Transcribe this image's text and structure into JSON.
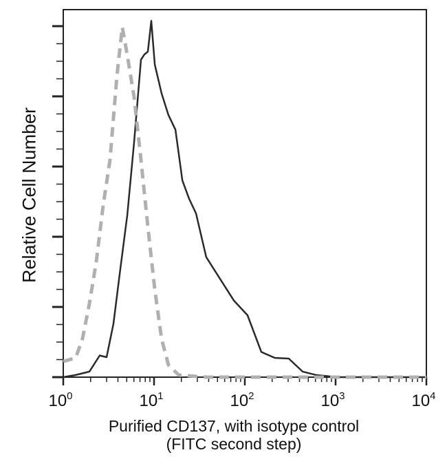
{
  "chart_data": {
    "type": "line",
    "title": "",
    "xlabel": [
      "Purified CD137, with isotype control",
      "(FITC second step)"
    ],
    "ylabel": "Relative Cell Number",
    "x_scale": "log",
    "xlim": [
      1,
      10000
    ],
    "ylim": [
      0,
      105
    ],
    "x_ticks": [
      {
        "base": "10",
        "exp": "0"
      },
      {
        "base": "10",
        "exp": "1"
      },
      {
        "base": "10",
        "exp": "2"
      },
      {
        "base": "10",
        "exp": "3"
      },
      {
        "base": "10",
        "exp": "4"
      }
    ],
    "grid": false,
    "series": [
      {
        "style": "solid",
        "color": "#2a2a2a",
        "x": [
          1,
          1.37,
          1.94,
          2.52,
          3.0,
          3.57,
          4.25,
          5.07,
          6.03,
          6.58,
          7.18,
          7.83,
          8.55,
          9.33,
          10.2,
          12.1,
          14.4,
          17.2,
          20.5,
          24.3,
          29.0,
          37.6,
          53.3,
          75.7,
          107,
          152,
          214,
          305,
          433,
          613,
          1036,
          10000
        ],
        "y": [
          0,
          0.6,
          1.6,
          3.5,
          7.5,
          15.3,
          29,
          49,
          68,
          78,
          88,
          94,
          93,
          100,
          92,
          82,
          74,
          68,
          58,
          51,
          45,
          37,
          29,
          21,
          15,
          9,
          5.5,
          3.5,
          1.6,
          0.6,
          0,
          0
        ]
      },
      {
        "style": "dashed",
        "color": "#b0b0b0",
        "x": [
          1,
          1.37,
          1.63,
          1.94,
          2.31,
          2.75,
          3.27,
          3.9,
          4.47,
          5.07,
          6.03,
          7.18,
          8.55,
          10.2,
          12.1,
          14.4,
          18.7,
          37.6,
          10000
        ],
        "y": [
          4.5,
          5.5,
          11,
          21,
          33,
          49,
          62,
          86,
          100,
          92,
          80,
          62,
          43,
          25,
          11,
          3.5,
          0.6,
          0,
          0
        ]
      }
    ]
  }
}
